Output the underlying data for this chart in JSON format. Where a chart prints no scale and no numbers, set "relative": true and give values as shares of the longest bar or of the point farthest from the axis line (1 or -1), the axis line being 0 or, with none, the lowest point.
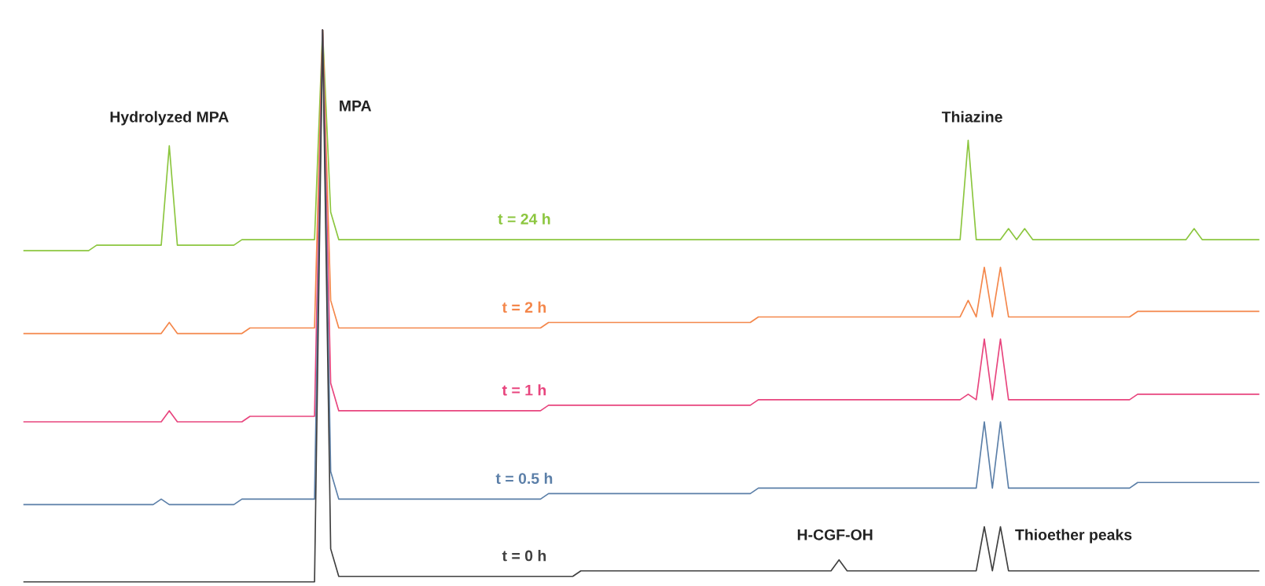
{
  "chart_data": {
    "type": "line",
    "relative": true,
    "categories": [
      null,
      null,
      null,
      null,
      null,
      null,
      null,
      null,
      null,
      null,
      null,
      null,
      null,
      null,
      null,
      null,
      null,
      null,
      null,
      null,
      null,
      null,
      null,
      null,
      null,
      null,
      null,
      null,
      null,
      null,
      null,
      null,
      null,
      null,
      null,
      null,
      null,
      null,
      null,
      null,
      null,
      null,
      null,
      null,
      null,
      null,
      null,
      null,
      null,
      null,
      null,
      null,
      null,
      null,
      null,
      null,
      null,
      null,
      null,
      null,
      null,
      null,
      null,
      null,
      null,
      null,
      null,
      null,
      null,
      null,
      null,
      null,
      null,
      null,
      null,
      null,
      null,
      null,
      null,
      null,
      null,
      null,
      null,
      null,
      null,
      null,
      null,
      null,
      null,
      null,
      null,
      null,
      null,
      null,
      null,
      null,
      null,
      null,
      null,
      null,
      null,
      null,
      null,
      null,
      null,
      null,
      null,
      null,
      null,
      null,
      null,
      null,
      null,
      null,
      null,
      null,
      null,
      null,
      null,
      null,
      null,
      null,
      null,
      null,
      null,
      null,
      null,
      null,
      null,
      null,
      null,
      null,
      null,
      null,
      null,
      null,
      null,
      null,
      null,
      null,
      null,
      null,
      null,
      null,
      null,
      null,
      null,
      null,
      null,
      null,
      null,
      null,
      null,
      null
    ],
    "series": [
      {
        "name": "t = 24 h",
        "color": "#8cc63f",
        "values": [
          0.6,
          0.6,
          0.6,
          0.6,
          0.6,
          0.6,
          0.6,
          0.6,
          0.6,
          0.61,
          0.61,
          0.61,
          0.61,
          0.61,
          0.61,
          0.61,
          0.61,
          0.61,
          0.79,
          0.61,
          0.61,
          0.61,
          0.61,
          0.61,
          0.61,
          0.61,
          0.61,
          0.62,
          0.62,
          0.62,
          0.62,
          0.62,
          0.62,
          0.62,
          0.62,
          0.62,
          0.62,
          1.0,
          0.67,
          0.62,
          0.62,
          0.62,
          0.62,
          0.62,
          0.62,
          0.62,
          0.62,
          0.62,
          0.62,
          0.62,
          0.62,
          0.62,
          0.62,
          0.62,
          0.62,
          0.62,
          0.62,
          0.62,
          0.62,
          0.62,
          0.62,
          0.62,
          0.62,
          0.62,
          0.62,
          0.62,
          0.62,
          0.62,
          0.62,
          0.62,
          0.62,
          0.62,
          0.62,
          0.62,
          0.62,
          0.62,
          0.62,
          0.62,
          0.62,
          0.62,
          0.62,
          0.62,
          0.62,
          0.62,
          0.62,
          0.62,
          0.62,
          0.62,
          0.62,
          0.62,
          0.62,
          0.62,
          0.62,
          0.62,
          0.62,
          0.62,
          0.62,
          0.62,
          0.62,
          0.62,
          0.62,
          0.62,
          0.62,
          0.62,
          0.62,
          0.62,
          0.62,
          0.62,
          0.62,
          0.62,
          0.62,
          0.62,
          0.62,
          0.62,
          0.62,
          0.62,
          0.62,
          0.8,
          0.62,
          0.62,
          0.62,
          0.62,
          0.64,
          0.62,
          0.64,
          0.62,
          0.62,
          0.62,
          0.62,
          0.62,
          0.62,
          0.62,
          0.62,
          0.62,
          0.62,
          0.62,
          0.62,
          0.62,
          0.62,
          0.62,
          0.62,
          0.62,
          0.62,
          0.62,
          0.62,
          0.64,
          0.62,
          0.62,
          0.62,
          0.62,
          0.62,
          0.62,
          0.62,
          0.62
        ]
      },
      {
        "name": "t = 2 h",
        "color": "#f4874b",
        "values": [
          0.45,
          0.45,
          0.45,
          0.45,
          0.45,
          0.45,
          0.45,
          0.45,
          0.45,
          0.45,
          0.45,
          0.45,
          0.45,
          0.45,
          0.45,
          0.45,
          0.45,
          0.45,
          0.47,
          0.45,
          0.45,
          0.45,
          0.45,
          0.45,
          0.45,
          0.45,
          0.45,
          0.45,
          0.46,
          0.46,
          0.46,
          0.46,
          0.46,
          0.46,
          0.46,
          0.46,
          0.46,
          1.0,
          0.51,
          0.46,
          0.46,
          0.46,
          0.46,
          0.46,
          0.46,
          0.46,
          0.46,
          0.46,
          0.46,
          0.46,
          0.46,
          0.46,
          0.46,
          0.46,
          0.46,
          0.46,
          0.46,
          0.46,
          0.46,
          0.46,
          0.46,
          0.46,
          0.46,
          0.46,
          0.46,
          0.47,
          0.47,
          0.47,
          0.47,
          0.47,
          0.47,
          0.47,
          0.47,
          0.47,
          0.47,
          0.47,
          0.47,
          0.47,
          0.47,
          0.47,
          0.47,
          0.47,
          0.47,
          0.47,
          0.47,
          0.47,
          0.47,
          0.47,
          0.47,
          0.47,
          0.47,
          0.48,
          0.48,
          0.48,
          0.48,
          0.48,
          0.48,
          0.48,
          0.48,
          0.48,
          0.48,
          0.48,
          0.48,
          0.48,
          0.48,
          0.48,
          0.48,
          0.48,
          0.48,
          0.48,
          0.48,
          0.48,
          0.48,
          0.48,
          0.48,
          0.48,
          0.48,
          0.51,
          0.48,
          0.57,
          0.48,
          0.57,
          0.48,
          0.48,
          0.48,
          0.48,
          0.48,
          0.48,
          0.48,
          0.48,
          0.48,
          0.48,
          0.48,
          0.48,
          0.48,
          0.48,
          0.48,
          0.48,
          0.49,
          0.49,
          0.49,
          0.49,
          0.49,
          0.49,
          0.49,
          0.49,
          0.49,
          0.49,
          0.49,
          0.49,
          0.49,
          0.49,
          0.49,
          0.49
        ]
      },
      {
        "name": "t = 1 h",
        "color": "#e8457e",
        "values": [
          0.29,
          0.29,
          0.29,
          0.29,
          0.29,
          0.29,
          0.29,
          0.29,
          0.29,
          0.29,
          0.29,
          0.29,
          0.29,
          0.29,
          0.29,
          0.29,
          0.29,
          0.29,
          0.31,
          0.29,
          0.29,
          0.29,
          0.29,
          0.29,
          0.29,
          0.29,
          0.29,
          0.29,
          0.3,
          0.3,
          0.3,
          0.3,
          0.3,
          0.3,
          0.3,
          0.3,
          0.3,
          1.0,
          0.36,
          0.31,
          0.31,
          0.31,
          0.31,
          0.31,
          0.31,
          0.31,
          0.31,
          0.31,
          0.31,
          0.31,
          0.31,
          0.31,
          0.31,
          0.31,
          0.31,
          0.31,
          0.31,
          0.31,
          0.31,
          0.31,
          0.31,
          0.31,
          0.31,
          0.31,
          0.31,
          0.32,
          0.32,
          0.32,
          0.32,
          0.32,
          0.32,
          0.32,
          0.32,
          0.32,
          0.32,
          0.32,
          0.32,
          0.32,
          0.32,
          0.32,
          0.32,
          0.32,
          0.32,
          0.32,
          0.32,
          0.32,
          0.32,
          0.32,
          0.32,
          0.32,
          0.32,
          0.33,
          0.33,
          0.33,
          0.33,
          0.33,
          0.33,
          0.33,
          0.33,
          0.33,
          0.33,
          0.33,
          0.33,
          0.33,
          0.33,
          0.33,
          0.33,
          0.33,
          0.33,
          0.33,
          0.33,
          0.33,
          0.33,
          0.33,
          0.33,
          0.33,
          0.33,
          0.34,
          0.33,
          0.44,
          0.33,
          0.44,
          0.33,
          0.33,
          0.33,
          0.33,
          0.33,
          0.33,
          0.33,
          0.33,
          0.33,
          0.33,
          0.33,
          0.33,
          0.33,
          0.33,
          0.33,
          0.33,
          0.34,
          0.34,
          0.34,
          0.34,
          0.34,
          0.34,
          0.34,
          0.34,
          0.34,
          0.34,
          0.34,
          0.34,
          0.34,
          0.34,
          0.34,
          0.34
        ]
      },
      {
        "name": "t = 0.5 h",
        "color": "#5b7fa8",
        "values": [
          0.14,
          0.14,
          0.14,
          0.14,
          0.14,
          0.14,
          0.14,
          0.14,
          0.14,
          0.14,
          0.14,
          0.14,
          0.14,
          0.14,
          0.14,
          0.14,
          0.14,
          0.15,
          0.14,
          0.14,
          0.14,
          0.14,
          0.14,
          0.14,
          0.14,
          0.14,
          0.14,
          0.15,
          0.15,
          0.15,
          0.15,
          0.15,
          0.15,
          0.15,
          0.15,
          0.15,
          0.15,
          1.0,
          0.2,
          0.15,
          0.15,
          0.15,
          0.15,
          0.15,
          0.15,
          0.15,
          0.15,
          0.15,
          0.15,
          0.15,
          0.15,
          0.15,
          0.15,
          0.15,
          0.15,
          0.15,
          0.15,
          0.15,
          0.15,
          0.15,
          0.15,
          0.15,
          0.15,
          0.15,
          0.15,
          0.16,
          0.16,
          0.16,
          0.16,
          0.16,
          0.16,
          0.16,
          0.16,
          0.16,
          0.16,
          0.16,
          0.16,
          0.16,
          0.16,
          0.16,
          0.16,
          0.16,
          0.16,
          0.16,
          0.16,
          0.16,
          0.16,
          0.16,
          0.16,
          0.16,
          0.16,
          0.17,
          0.17,
          0.17,
          0.17,
          0.17,
          0.17,
          0.17,
          0.17,
          0.17,
          0.17,
          0.17,
          0.17,
          0.17,
          0.17,
          0.17,
          0.17,
          0.17,
          0.17,
          0.17,
          0.17,
          0.17,
          0.17,
          0.17,
          0.17,
          0.17,
          0.17,
          0.17,
          0.17,
          0.29,
          0.17,
          0.29,
          0.17,
          0.17,
          0.17,
          0.17,
          0.17,
          0.17,
          0.17,
          0.17,
          0.17,
          0.17,
          0.17,
          0.17,
          0.17,
          0.17,
          0.17,
          0.17,
          0.18,
          0.18,
          0.18,
          0.18,
          0.18,
          0.18,
          0.18,
          0.18,
          0.18,
          0.18,
          0.18,
          0.18,
          0.18,
          0.18,
          0.18,
          0.18
        ]
      },
      {
        "name": "t = 0 h",
        "color": "#404040",
        "values": [
          0.0,
          0.0,
          0.0,
          0.0,
          0.0,
          0.0,
          0.0,
          0.0,
          0.0,
          0.0,
          0.0,
          0.0,
          0.0,
          0.0,
          0.0,
          0.0,
          0.0,
          0.0,
          0.0,
          0.0,
          0.0,
          0.0,
          0.0,
          0.0,
          0.0,
          0.0,
          0.0,
          0.0,
          0.0,
          0.0,
          0.0,
          0.0,
          0.0,
          0.0,
          0.0,
          0.0,
          0.0,
          1.0,
          0.06,
          0.01,
          0.01,
          0.01,
          0.01,
          0.01,
          0.01,
          0.01,
          0.01,
          0.01,
          0.01,
          0.01,
          0.01,
          0.01,
          0.01,
          0.01,
          0.01,
          0.01,
          0.01,
          0.01,
          0.01,
          0.01,
          0.01,
          0.01,
          0.01,
          0.01,
          0.01,
          0.01,
          0.01,
          0.01,
          0.01,
          0.02,
          0.02,
          0.02,
          0.02,
          0.02,
          0.02,
          0.02,
          0.02,
          0.02,
          0.02,
          0.02,
          0.02,
          0.02,
          0.02,
          0.02,
          0.02,
          0.02,
          0.02,
          0.02,
          0.02,
          0.02,
          0.02,
          0.02,
          0.02,
          0.02,
          0.02,
          0.02,
          0.02,
          0.02,
          0.02,
          0.02,
          0.02,
          0.04,
          0.02,
          0.02,
          0.02,
          0.02,
          0.02,
          0.02,
          0.02,
          0.02,
          0.02,
          0.02,
          0.02,
          0.02,
          0.02,
          0.02,
          0.02,
          0.02,
          0.02,
          0.1,
          0.02,
          0.1,
          0.02,
          0.02,
          0.02,
          0.02,
          0.02,
          0.02,
          0.02,
          0.02,
          0.02,
          0.02,
          0.02,
          0.02,
          0.02,
          0.02,
          0.02,
          0.02,
          0.02,
          0.02,
          0.02,
          0.02,
          0.02,
          0.02,
          0.02,
          0.02,
          0.02,
          0.02,
          0.02,
          0.02,
          0.02,
          0.02,
          0.02,
          0.02
        ]
      }
    ],
    "annotations": [
      "Hydrolyzed MPA",
      "MPA",
      "Thiazine",
      "H-CGF-OH",
      "Thioether peaks"
    ]
  }
}
